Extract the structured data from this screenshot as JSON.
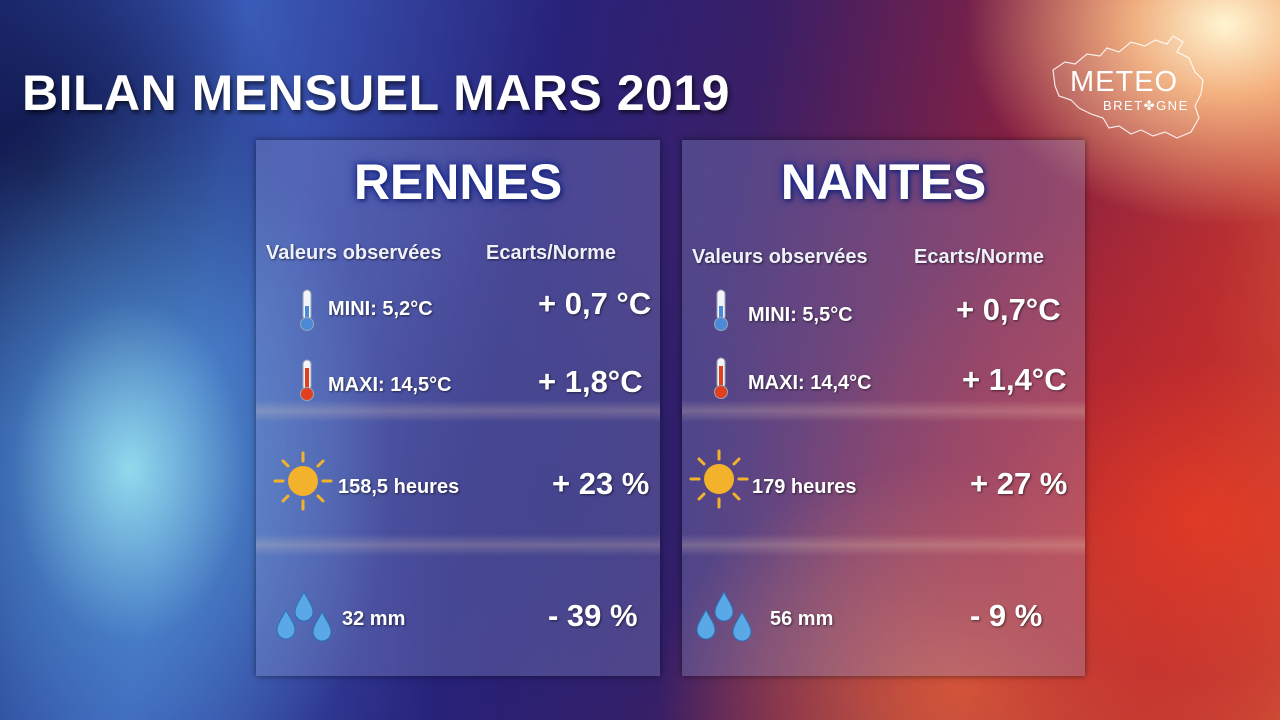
{
  "title": "BILAN MENSUEL MARS 2019",
  "logo": {
    "line1": "METEO",
    "line2": "BRET✤GNE"
  },
  "icons": [
    "thermometer-cold-icon",
    "thermometer-hot-icon",
    "sun-icon",
    "rain-drops-icon"
  ],
  "colors": {
    "city_glow": "#1a2a90",
    "thermo_cold": "#4a8ad8",
    "thermo_hot": "#e04020",
    "sun": "#f2b22c"
  },
  "cities": [
    {
      "name": "RENNES",
      "col_observed": "Valeurs observées",
      "col_deviation": "Ecarts/Norme",
      "min_label": "MINI: 5,2°C",
      "min_deviation": "+ 0,7 °C",
      "max_label": "MAXI: 14,5°C",
      "max_deviation": "+ 1,8°C",
      "sun_label": "158,5 heures",
      "sun_deviation": "+ 23 %",
      "rain_label": "32 mm",
      "rain_deviation": "- 39 %"
    },
    {
      "name": "NANTES",
      "col_observed": "Valeurs observées",
      "col_deviation": "Ecarts/Norme",
      "min_label": "MINI: 5,5°C",
      "min_deviation": "+ 0,7°C",
      "max_label": "MAXI: 14,4°C",
      "max_deviation": "+ 1,4°C",
      "sun_label": "179 heures",
      "sun_deviation": "+ 27 %",
      "rain_label": "56 mm",
      "rain_deviation": "- 9 %"
    }
  ]
}
